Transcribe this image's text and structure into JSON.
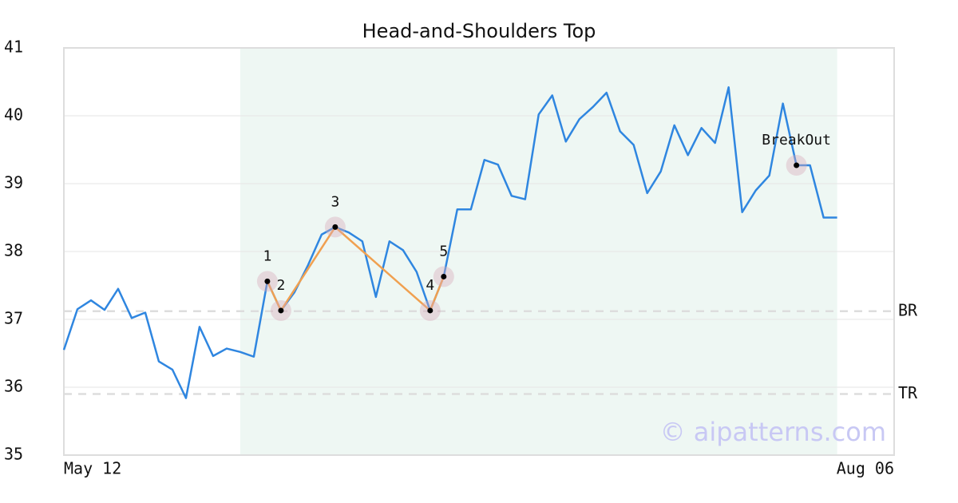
{
  "chart_data": {
    "type": "line",
    "title": "Head-and-Shoulders Top",
    "x": [
      0,
      1,
      2,
      3,
      4,
      5,
      6,
      7,
      8,
      9,
      10,
      11,
      12,
      13,
      14,
      15,
      16,
      17,
      18,
      19,
      20,
      21,
      22,
      23,
      24,
      25,
      26,
      27,
      28,
      29,
      30,
      31,
      32,
      33,
      34,
      35,
      36,
      37,
      38,
      39,
      40,
      41,
      42,
      43,
      44,
      45,
      46,
      47,
      48,
      49,
      50,
      51,
      52,
      53,
      54,
      55,
      56,
      57
    ],
    "series": [
      {
        "color": "#2f86e0",
        "values": [
          36.55,
          37.15,
          37.28,
          37.14,
          37.45,
          37.02,
          37.1,
          36.38,
          36.26,
          35.84,
          36.89,
          36.46,
          36.57,
          36.52,
          36.45,
          37.56,
          37.13,
          37.4,
          37.8,
          38.25,
          38.36,
          38.28,
          38.15,
          37.33,
          38.15,
          38.02,
          37.7,
          37.13,
          37.63,
          38.62,
          38.62,
          39.35,
          39.28,
          38.82,
          38.77,
          40.02,
          40.3,
          39.62,
          39.95,
          40.13,
          40.34,
          39.77,
          39.57,
          38.86,
          39.18,
          39.86,
          39.42,
          39.82,
          39.6,
          40.42,
          38.58,
          38.9,
          39.12,
          40.18,
          39.27,
          39.27,
          38.5,
          38.5
        ]
      }
    ],
    "pattern": {
      "color": "#f0a050",
      "labels": [
        "1",
        "2",
        "3",
        "4",
        "5"
      ],
      "x": [
        15,
        16,
        20,
        27,
        28
      ],
      "values": [
        37.56,
        37.13,
        38.36,
        37.13,
        37.63
      ]
    },
    "breakout": {
      "label": "BreakOut",
      "x": 54,
      "value": 39.27
    },
    "levels": [
      {
        "label": "BR",
        "value": 37.12
      },
      {
        "label": "TR",
        "value": 35.9
      }
    ],
    "highlight": {
      "x": [
        13,
        57
      ],
      "color": "#eef7f3"
    },
    "watermark": "© aipatterns.com",
    "xlim": [
      0,
      61.2
    ],
    "xticks": [
      {
        "value": 0,
        "label": "May 12"
      },
      {
        "value": 61.2,
        "label": "Aug 06"
      }
    ],
    "ylim": [
      35,
      41
    ],
    "yticks": [
      35,
      36,
      37,
      38,
      39,
      40,
      41
    ],
    "grid": true
  }
}
